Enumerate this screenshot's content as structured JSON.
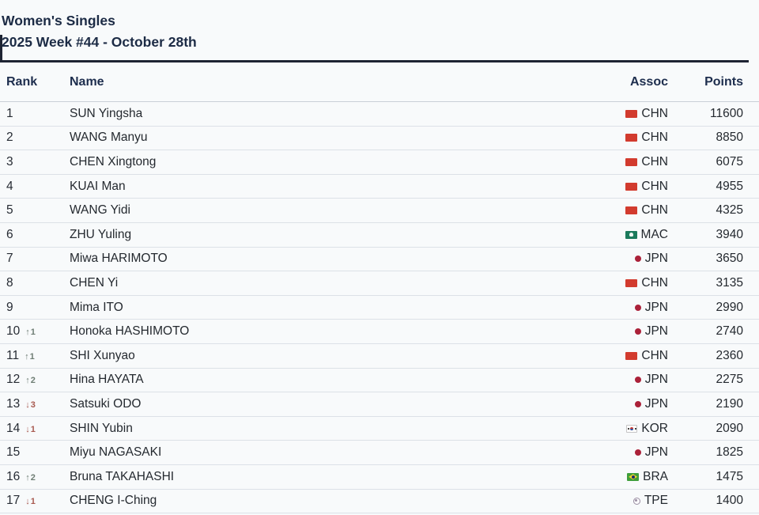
{
  "header": {
    "title": "Women's Singles",
    "subtitle": "2025 Week #44 - October 28th"
  },
  "table": {
    "columns": {
      "rank": "Rank",
      "name": "Name",
      "assoc": "Assoc",
      "points": "Points"
    },
    "rows": [
      {
        "rank": "1",
        "change": null,
        "name": "SUN Yingsha",
        "flag": "chn",
        "assoc": "CHN",
        "points": "11600"
      },
      {
        "rank": "2",
        "change": null,
        "name": "WANG Manyu",
        "flag": "chn",
        "assoc": "CHN",
        "points": "8850"
      },
      {
        "rank": "3",
        "change": null,
        "name": "CHEN Xingtong",
        "flag": "chn",
        "assoc": "CHN",
        "points": "6075"
      },
      {
        "rank": "4",
        "change": null,
        "name": "KUAI Man",
        "flag": "chn",
        "assoc": "CHN",
        "points": "4955"
      },
      {
        "rank": "5",
        "change": null,
        "name": "WANG Yidi",
        "flag": "chn",
        "assoc": "CHN",
        "points": "4325"
      },
      {
        "rank": "6",
        "change": null,
        "name": "ZHU Yuling",
        "flag": "mac",
        "assoc": "MAC",
        "points": "3940"
      },
      {
        "rank": "7",
        "change": null,
        "name": "Miwa HARIMOTO",
        "flag": "jpn",
        "assoc": "JPN",
        "points": "3650"
      },
      {
        "rank": "8",
        "change": null,
        "name": "CHEN Yi",
        "flag": "chn",
        "assoc": "CHN",
        "points": "3135"
      },
      {
        "rank": "9",
        "change": null,
        "name": "Mima ITO",
        "flag": "jpn",
        "assoc": "JPN",
        "points": "2990"
      },
      {
        "rank": "10",
        "change": {
          "dir": "up",
          "val": "1"
        },
        "name": "Honoka HASHIMOTO",
        "flag": "jpn",
        "assoc": "JPN",
        "points": "2740"
      },
      {
        "rank": "11",
        "change": {
          "dir": "up",
          "val": "1"
        },
        "name": "SHI Xunyao",
        "flag": "chn",
        "assoc": "CHN",
        "points": "2360"
      },
      {
        "rank": "12",
        "change": {
          "dir": "up",
          "val": "2"
        },
        "name": "Hina HAYATA",
        "flag": "jpn",
        "assoc": "JPN",
        "points": "2275"
      },
      {
        "rank": "13",
        "change": {
          "dir": "down",
          "val": "3"
        },
        "name": "Satsuki ODO",
        "flag": "jpn",
        "assoc": "JPN",
        "points": "2190"
      },
      {
        "rank": "14",
        "change": {
          "dir": "down",
          "val": "1"
        },
        "name": "SHIN Yubin",
        "flag": "kor",
        "assoc": "KOR",
        "points": "2090"
      },
      {
        "rank": "15",
        "change": null,
        "name": "Miyu NAGASAKI",
        "flag": "jpn",
        "assoc": "JPN",
        "points": "1825"
      },
      {
        "rank": "16",
        "change": {
          "dir": "up",
          "val": "2"
        },
        "name": "Bruna TAKAHASHI",
        "flag": "bra",
        "assoc": "BRA",
        "points": "1475"
      },
      {
        "rank": "17",
        "change": {
          "dir": "down",
          "val": "1"
        },
        "name": "CHENG I-Ching",
        "flag": "tpe",
        "assoc": "TPE",
        "points": "1400"
      }
    ]
  },
  "icons": {
    "up_arrow": "↑",
    "down_arrow": "↓"
  },
  "colors": {
    "title_text": "#1c2b45",
    "rule": "#1e2433",
    "up_change": "#6e7d74",
    "down_change": "#a85a50",
    "chn_flag_red": "#d23b2e",
    "mac_flag_green": "#1b7a5c",
    "jpn_dot_red": "#ab2139",
    "bra_flag_green": "#3f9e3a",
    "row_separator": "#dce1e7",
    "background": "#f8fafb"
  }
}
